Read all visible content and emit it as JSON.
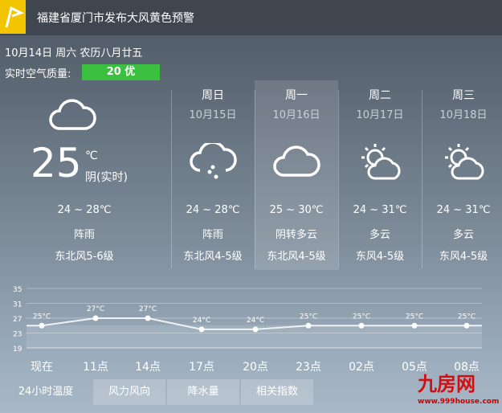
{
  "warning": {
    "title": "福建省厦门市发布大风黄色预警",
    "icon": "warning-flag-icon",
    "color": "#f2c500"
  },
  "today": {
    "date": "10月14日 周六 农历八月廿五",
    "aq_label": "实时空气质量:",
    "aq_value": "20 优",
    "aq_color": "#3bbf3f",
    "temp": "25",
    "unit": "℃",
    "cond": "阴(实时)",
    "range": "24 ~ 28℃",
    "weather": "阵雨",
    "wind": "东北风5-6级",
    "icon": "cloud-icon"
  },
  "forecast": [
    {
      "day": "周日",
      "date": "10月15日",
      "range": "24 ~ 28℃",
      "weather": "阵雨",
      "wind": "东北风4-5级",
      "icon": "rain-cloud-icon"
    },
    {
      "day": "周一",
      "date": "10月16日",
      "range": "25 ~ 30℃",
      "weather": "阴转多云",
      "wind": "东北风4-5级",
      "icon": "cloud-icon",
      "selected": true
    },
    {
      "day": "周二",
      "date": "10月17日",
      "range": "24 ~ 31℃",
      "weather": "多云",
      "wind": "东风4-5级",
      "icon": "partly-cloudy-icon"
    },
    {
      "day": "周三",
      "date": "10月18日",
      "range": "24 ~ 31℃",
      "weather": "多云",
      "wind": "东风4-5级",
      "icon": "partly-cloudy-icon"
    }
  ],
  "chart_data": {
    "type": "line",
    "categories": [
      "现在",
      "11点",
      "14点",
      "17点",
      "20点",
      "23点",
      "02点",
      "05点",
      "08点"
    ],
    "values": [
      25,
      27,
      27,
      24,
      24,
      25,
      25,
      25,
      25
    ],
    "labels": [
      "25°C",
      "27°C",
      "27°C",
      "24°C",
      "24°C",
      "25°C",
      "25°C",
      "25°C",
      "25°C"
    ],
    "yticks": [
      "35",
      "31",
      "27",
      "23",
      "19"
    ],
    "ylim": [
      19,
      35
    ],
    "grid": true
  },
  "tabs": [
    "24小时温度",
    "风力风向",
    "降水量",
    "相关指数"
  ],
  "watermark": {
    "text": "九房网",
    "url": "www.999house.com"
  }
}
